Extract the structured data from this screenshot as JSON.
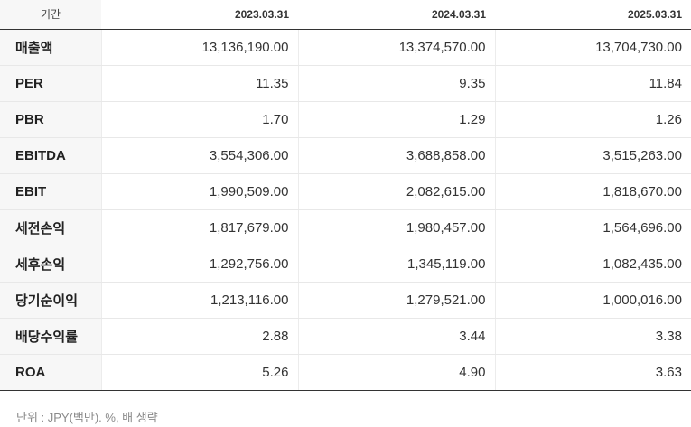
{
  "table": {
    "corner_label": "기간",
    "periods": [
      "2023.03.31",
      "2024.03.31",
      "2025.03.31"
    ],
    "rows": [
      {
        "label": "매출액",
        "values": [
          "13,136,190.00",
          "13,374,570.00",
          "13,704,730.00"
        ]
      },
      {
        "label": "PER",
        "values": [
          "11.35",
          "9.35",
          "11.84"
        ]
      },
      {
        "label": "PBR",
        "values": [
          "1.70",
          "1.29",
          "1.26"
        ]
      },
      {
        "label": "EBITDA",
        "values": [
          "3,554,306.00",
          "3,688,858.00",
          "3,515,263.00"
        ]
      },
      {
        "label": "EBIT",
        "values": [
          "1,990,509.00",
          "2,082,615.00",
          "1,818,670.00"
        ]
      },
      {
        "label": "세전손익",
        "values": [
          "1,817,679.00",
          "1,980,457.00",
          "1,564,696.00"
        ]
      },
      {
        "label": "세후손익",
        "values": [
          "1,292,756.00",
          "1,345,119.00",
          "1,082,435.00"
        ]
      },
      {
        "label": "당기순이익",
        "values": [
          "1,213,116.00",
          "1,279,521.00",
          "1,000,016.00"
        ]
      },
      {
        "label": "배당수익률",
        "values": [
          "2.88",
          "3.44",
          "3.38"
        ]
      },
      {
        "label": "ROA",
        "values": [
          "5.26",
          "4.90",
          "3.63"
        ]
      }
    ]
  },
  "footnote": "단위 : JPY(백만). %, 배 생략"
}
